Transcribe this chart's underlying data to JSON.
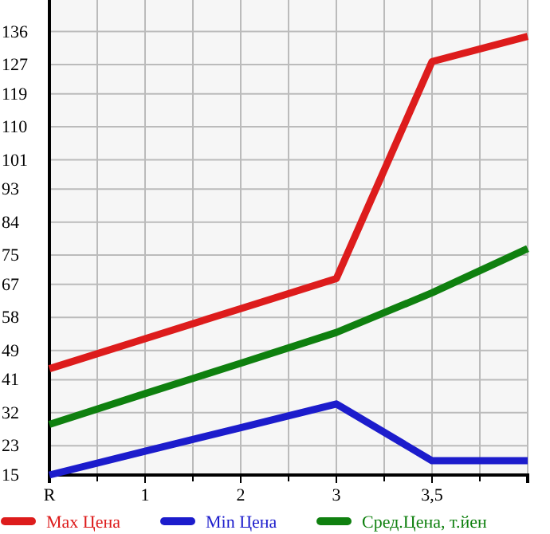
{
  "chart_data": {
    "type": "line",
    "categories": [
      "R",
      "1",
      "2",
      "3",
      "3,5",
      null
    ],
    "series": [
      {
        "name": "Max Цена",
        "color": "#dd1c1c",
        "values": [
          44,
          52.2,
          60.4,
          68.6,
          127.8,
          134.7
        ]
      },
      {
        "name": "Min Цена",
        "color": "#1c1ccc",
        "values": [
          15,
          21.5,
          27.9,
          34.4,
          18.9,
          18.9
        ]
      },
      {
        "name": "Сред.Цена, т.йен",
        "color": "#0f800f",
        "values": [
          28.8,
          37.2,
          45.5,
          53.9,
          64.7,
          76.8
        ]
      }
    ],
    "ylim": [
      15,
      144.6
    ],
    "yticks": [
      15,
      23,
      32,
      41,
      49,
      58,
      67,
      75,
      84,
      93,
      101,
      110,
      119,
      127,
      136
    ],
    "grid": true,
    "legend": "bottom",
    "marker": "none",
    "line_style": "solid"
  }
}
